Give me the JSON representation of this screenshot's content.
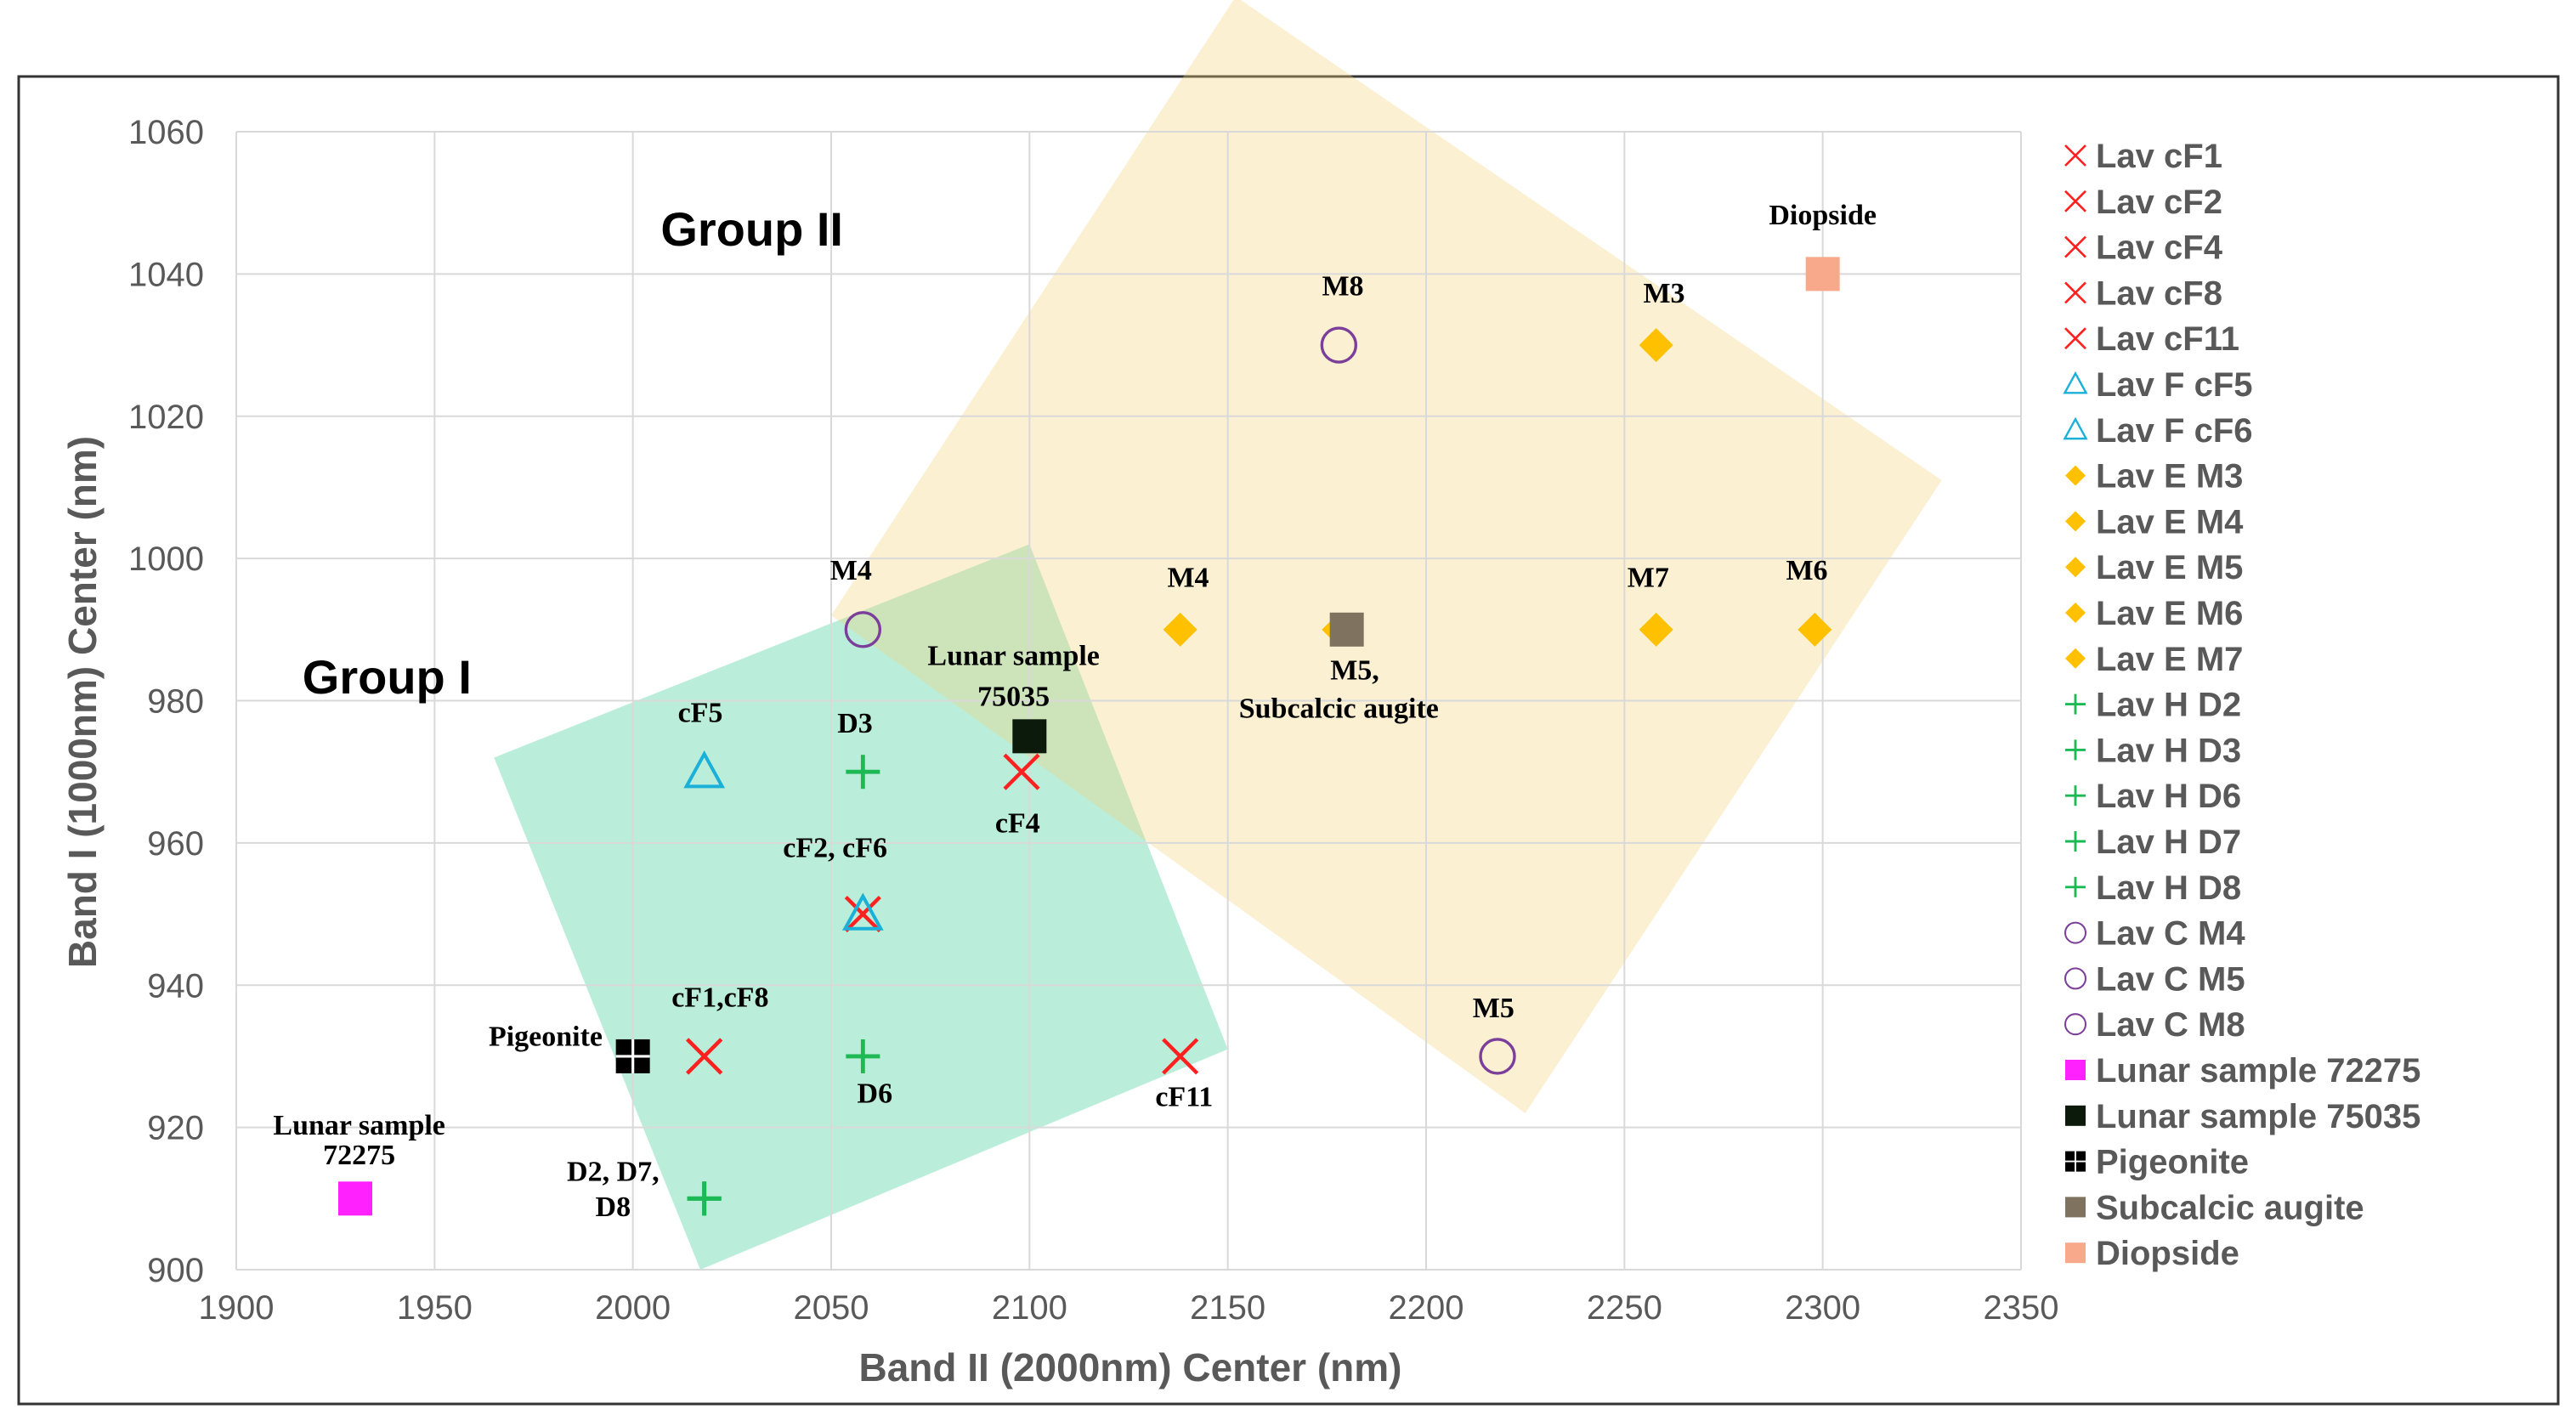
{
  "chart_data": {
    "type": "scatter",
    "xlabel": "Band II (2000nm) Center (nm)",
    "ylabel": "Band I (1000nm) Center (nm)",
    "xlim": [
      1900,
      2350
    ],
    "ylim": [
      900,
      1060
    ],
    "xticks": [
      1900,
      1950,
      2000,
      2050,
      2100,
      2150,
      2200,
      2250,
      2300,
      2350
    ],
    "yticks": [
      900,
      920,
      940,
      960,
      980,
      1000,
      1020,
      1040,
      1060
    ],
    "grid": true,
    "legend_position": "right",
    "regions": [
      {
        "name": "Group I",
        "color": "#2ecc8f",
        "polygon": [
          [
            1965,
            972
          ],
          [
            2100,
            1002
          ],
          [
            2150,
            931
          ],
          [
            2017,
            900
          ]
        ]
      },
      {
        "name": "Group II",
        "color": "#f7d27a",
        "polygon": [
          [
            2050,
            992
          ],
          [
            2152,
            1079
          ],
          [
            2330,
            1011
          ],
          [
            2225,
            922
          ]
        ]
      }
    ],
    "series": [
      {
        "name": "Lav cF1",
        "marker": "x",
        "color": "#ff2020",
        "x": [
          2018
        ],
        "y": [
          930
        ]
      },
      {
        "name": "Lav cF2",
        "marker": "x",
        "color": "#ff2020",
        "x": [
          2058
        ],
        "y": [
          950
        ]
      },
      {
        "name": "Lav cF4",
        "marker": "x",
        "color": "#ff2020",
        "x": [
          2098
        ],
        "y": [
          970
        ]
      },
      {
        "name": "Lav cF8",
        "marker": "x",
        "color": "#ff2020",
        "x": [
          2018
        ],
        "y": [
          930
        ]
      },
      {
        "name": "Lav cF11",
        "marker": "x",
        "color": "#ff2020",
        "x": [
          2138
        ],
        "y": [
          930
        ]
      },
      {
        "name": "Lav F cF5",
        "marker": "triangle",
        "color": "#1ab0d8",
        "x": [
          2018
        ],
        "y": [
          970
        ]
      },
      {
        "name": "Lav F cF6",
        "marker": "triangle",
        "color": "#1ab0d8",
        "x": [
          2058
        ],
        "y": [
          950
        ]
      },
      {
        "name": "Lav E M3",
        "marker": "diamond",
        "color": "#ffc000",
        "x": [
          2258
        ],
        "y": [
          1030
        ]
      },
      {
        "name": "Lav E M4",
        "marker": "diamond",
        "color": "#ffc000",
        "x": [
          2138
        ],
        "y": [
          990
        ]
      },
      {
        "name": "Lav E M5",
        "marker": "diamond",
        "color": "#ffc000",
        "x": [
          2178
        ],
        "y": [
          990
        ]
      },
      {
        "name": "Lav E M6",
        "marker": "diamond",
        "color": "#ffc000",
        "x": [
          2298
        ],
        "y": [
          990
        ]
      },
      {
        "name": "Lav E M7",
        "marker": "diamond",
        "color": "#ffc000",
        "x": [
          2258
        ],
        "y": [
          990
        ]
      },
      {
        "name": "Lav H D2",
        "marker": "plus",
        "color": "#1db954",
        "x": [
          2018
        ],
        "y": [
          910
        ]
      },
      {
        "name": "Lav H D3",
        "marker": "plus",
        "color": "#1db954",
        "x": [
          2058
        ],
        "y": [
          970
        ]
      },
      {
        "name": "Lav H D6",
        "marker": "plus",
        "color": "#1db954",
        "x": [
          2058
        ],
        "y": [
          930
        ]
      },
      {
        "name": "Lav H D7",
        "marker": "plus",
        "color": "#1db954",
        "x": [
          2018
        ],
        "y": [
          910
        ]
      },
      {
        "name": "Lav H D8",
        "marker": "plus",
        "color": "#1db954",
        "x": [
          2018
        ],
        "y": [
          910
        ]
      },
      {
        "name": "Lav C M4",
        "marker": "circle",
        "color": "#7b3f9a",
        "x": [
          2058
        ],
        "y": [
          990
        ]
      },
      {
        "name": "Lav C M5",
        "marker": "circle",
        "color": "#7b3f9a",
        "x": [
          2218
        ],
        "y": [
          930
        ]
      },
      {
        "name": "Lav C M8",
        "marker": "circle",
        "color": "#7b3f9a",
        "x": [
          2178
        ],
        "y": [
          1030
        ]
      },
      {
        "name": "Lunar sample 72275",
        "marker": "square",
        "color": "#ff22ff",
        "x": [
          1930
        ],
        "y": [
          910
        ]
      },
      {
        "name": "Lunar sample 75035",
        "marker": "square",
        "color": "#0b1a0b",
        "x": [
          2100
        ],
        "y": [
          975
        ]
      },
      {
        "name": "Pigeonite",
        "marker": "grid-square",
        "color": "#000000",
        "x": [
          2000
        ],
        "y": [
          930
        ]
      },
      {
        "name": "Subcalcic augite",
        "marker": "square",
        "color": "#7f7360",
        "x": [
          2180
        ],
        "y": [
          990
        ]
      },
      {
        "name": "Diopside",
        "marker": "square",
        "color": "#f8a98b",
        "x": [
          2300
        ],
        "y": [
          1040
        ]
      }
    ],
    "annotations": [
      {
        "text": "Group I",
        "x": 1938,
        "y": 981,
        "style": "group"
      },
      {
        "text": "Group II",
        "x": 2030,
        "y": 1044,
        "style": "group"
      },
      {
        "text": "Diopside",
        "x": 2300,
        "y": 1047,
        "style": "point"
      },
      {
        "text": "M8",
        "x": 2179,
        "y": 1037,
        "style": "point"
      },
      {
        "text": "M3",
        "x": 2260,
        "y": 1036,
        "style": "point"
      },
      {
        "text": "M4",
        "x": 2055,
        "y": 997,
        "style": "point"
      },
      {
        "text": "M4",
        "x": 2140,
        "y": 996,
        "style": "point"
      },
      {
        "text": "M7",
        "x": 2256,
        "y": 996,
        "style": "point"
      },
      {
        "text": "M6",
        "x": 2296,
        "y": 997,
        "style": "point"
      },
      {
        "text": "Lunar sample",
        "x": 2096,
        "y": 985,
        "style": "point"
      },
      {
        "text": "75035",
        "x": 2096,
        "y": 979.3,
        "style": "point"
      },
      {
        "text": "M5,",
        "x": 2182,
        "y": 983,
        "style": "point"
      },
      {
        "text": "Subcalcic augite",
        "x": 2178,
        "y": 977.6,
        "style": "point"
      },
      {
        "text": "cF5",
        "x": 2017,
        "y": 977,
        "style": "point"
      },
      {
        "text": "D3",
        "x": 2056,
        "y": 975.5,
        "style": "point"
      },
      {
        "text": "cF4",
        "x": 2097,
        "y": 961.5,
        "style": "point"
      },
      {
        "text": "cF2, cF6",
        "x": 2051,
        "y": 958,
        "style": "point"
      },
      {
        "text": "M5",
        "x": 2217,
        "y": 935.5,
        "style": "point"
      },
      {
        "text": "cF1,cF8",
        "x": 2022,
        "y": 937,
        "style": "point"
      },
      {
        "text": "Pigeonite",
        "x": 1978,
        "y": 931.5,
        "style": "point"
      },
      {
        "text": "D6",
        "x": 2061,
        "y": 923.5,
        "style": "point"
      },
      {
        "text": "cF11",
        "x": 2139,
        "y": 923,
        "style": "point"
      },
      {
        "text": "Lunar sample",
        "x": 1931,
        "y": 919,
        "style": "point"
      },
      {
        "text": "72275",
        "x": 1931,
        "y": 914.8,
        "style": "point"
      },
      {
        "text": "D2, D7,",
        "x": 1995,
        "y": 912.5,
        "style": "point"
      },
      {
        "text": "D8",
        "x": 1995,
        "y": 907.5,
        "style": "point"
      }
    ]
  }
}
